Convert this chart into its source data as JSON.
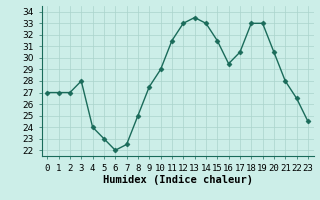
{
  "x": [
    0,
    1,
    2,
    3,
    4,
    5,
    6,
    7,
    8,
    9,
    10,
    11,
    12,
    13,
    14,
    15,
    16,
    17,
    18,
    19,
    20,
    21,
    22,
    23
  ],
  "y": [
    27,
    27,
    27,
    28,
    24,
    23,
    22,
    22.5,
    25,
    27.5,
    29,
    31.5,
    33,
    33.5,
    33,
    31.5,
    29.5,
    30.5,
    33,
    33,
    30.5,
    28,
    26.5,
    24.5
  ],
  "line_color": "#1a6b5a",
  "marker": "D",
  "markersize": 2.5,
  "linewidth": 1.0,
  "xlabel": "Humidex (Indice chaleur)",
  "xlim": [
    -0.5,
    23.5
  ],
  "ylim": [
    21.5,
    34.5
  ],
  "yticks": [
    22,
    23,
    24,
    25,
    26,
    27,
    28,
    29,
    30,
    31,
    32,
    33,
    34
  ],
  "xtick_labels": [
    "0",
    "1",
    "2",
    "3",
    "4",
    "5",
    "6",
    "7",
    "8",
    "9",
    "10",
    "11",
    "12",
    "13",
    "14",
    "15",
    "16",
    "17",
    "18",
    "19",
    "20",
    "21",
    "22",
    "23"
  ],
  "bg_color": "#cceee8",
  "grid_color": "#aad4cc",
  "xlabel_fontsize": 7.5,
  "tick_fontsize": 6.5,
  "spine_color": "#1a6b5a"
}
